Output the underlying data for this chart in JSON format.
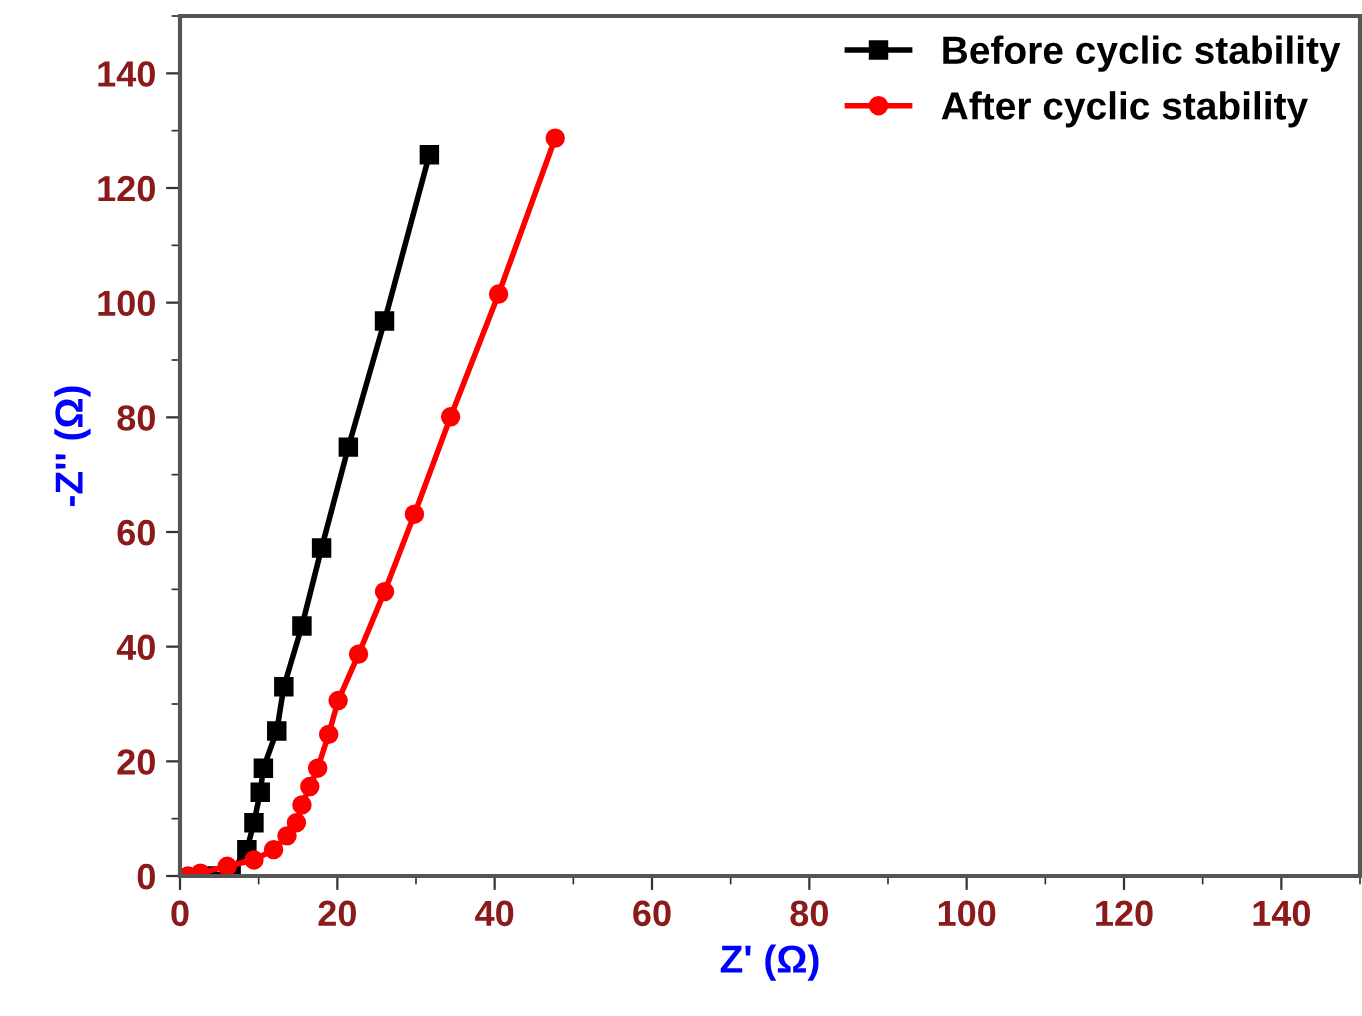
{
  "chart_data": {
    "type": "line",
    "xlabel": "Z' (Ω)",
    "ylabel": "-Z'' (Ω)",
    "xlim": [
      0,
      150
    ],
    "ylim": [
      0,
      150
    ],
    "xticks": [
      0,
      20,
      40,
      60,
      80,
      100,
      120,
      140
    ],
    "yticks": [
      0,
      20,
      40,
      60,
      80,
      100,
      120,
      140
    ],
    "legend": "top right",
    "grid": false,
    "series": [
      {
        "name": "Before cyclic stability",
        "color": "#000000",
        "marker": "square",
        "x": [
          3.5,
          6.5,
          8.5,
          9.4,
          10.2,
          10.6,
          12.3,
          13.2,
          15.5,
          18,
          21.4,
          26,
          31.7
        ],
        "values": [
          0,
          0.5,
          4.6,
          9.3,
          14.6,
          18.8,
          25.3,
          33,
          43.6,
          57.2,
          74.8,
          96.8,
          125.8
        ]
      },
      {
        "name": "After cyclic stability",
        "color": "#ff0000",
        "marker": "circle",
        "x": [
          1,
          2.6,
          6,
          9.4,
          11.9,
          13.6,
          14.8,
          15.5,
          16.5,
          17.5,
          18.9,
          20.1,
          22.7,
          26,
          29.8,
          34.4,
          40.5,
          47.7
        ],
        "values": [
          0,
          0.5,
          1.7,
          2.8,
          4.6,
          7,
          9.3,
          12.4,
          15.6,
          18.8,
          24.7,
          30.6,
          38.7,
          49.6,
          63.1,
          80.1,
          101.5,
          128.7
        ]
      }
    ]
  }
}
